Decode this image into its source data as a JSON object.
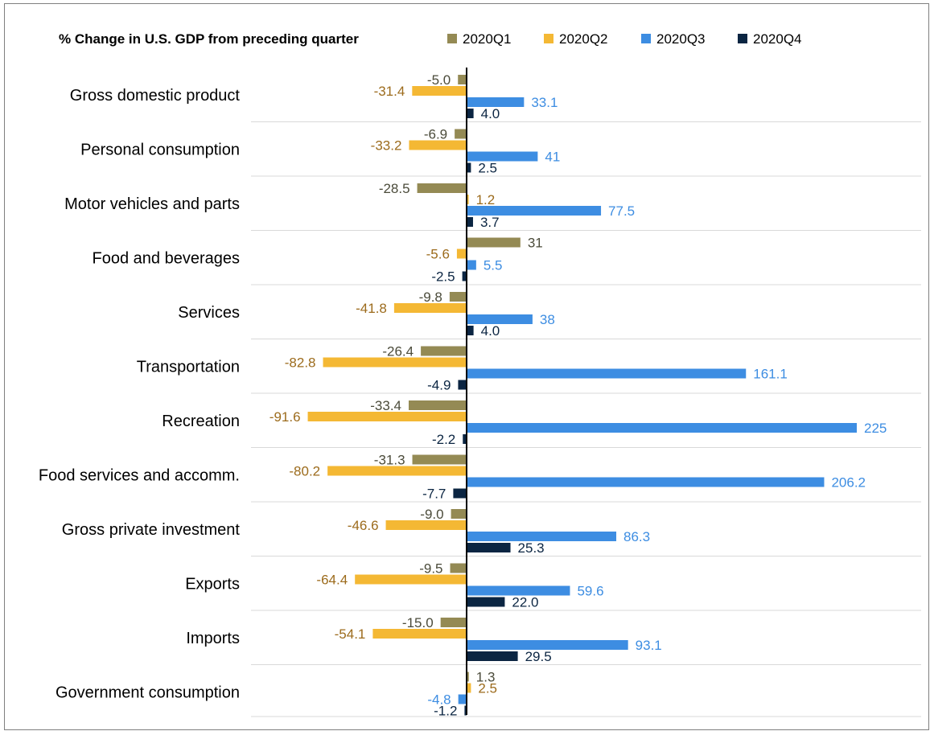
{
  "chart_data": {
    "type": "bar",
    "orientation": "horizontal",
    "title": "% Change in U.S. GDP from preceding quarter",
    "categories": [
      "Gross domestic product",
      "Personal consumption",
      "Motor vehicles and parts",
      "Food and beverages",
      "Services",
      "Transportation",
      "Recreation",
      "Food services and accomm.",
      "Gross private investment",
      "Exports",
      "Imports",
      "Government consumption"
    ],
    "series": [
      {
        "name": "2020Q1",
        "color": "#948a54",
        "label_color": "#4b4b3a",
        "values": [
          -5.0,
          -6.9,
          -28.5,
          31,
          -9.8,
          -26.4,
          -33.4,
          -31.3,
          -9.0,
          -9.5,
          -15.0,
          1.3
        ],
        "labels": [
          "-5.0",
          "-6.9",
          "-28.5",
          "31",
          "-9.8",
          "-26.4",
          "-33.4",
          "-31.3",
          "-9.0",
          "-9.5",
          "-15.0",
          "1.3"
        ]
      },
      {
        "name": "2020Q2",
        "color": "#f4b834",
        "label_color": "#9c6b1c",
        "values": [
          -31.4,
          -33.2,
          1.2,
          -5.6,
          -41.8,
          -82.8,
          -91.6,
          -80.2,
          -46.6,
          -64.4,
          -54.1,
          2.5
        ],
        "labels": [
          "-31.4",
          "-33.2",
          "1.2",
          "-5.6",
          "-41.8",
          "-82.8",
          "-91.6",
          "-80.2",
          "-46.6",
          "-64.4",
          "-54.1",
          "2.5"
        ]
      },
      {
        "name": "2020Q3",
        "color": "#3d8de2",
        "label_color": "#3d8de2",
        "values": [
          33.1,
          41,
          77.5,
          5.5,
          38,
          161.1,
          225,
          206.2,
          86.3,
          59.6,
          93.1,
          -4.8
        ],
        "labels": [
          "33.1",
          "41",
          "77.5",
          "5.5",
          "38",
          "161.1",
          "225",
          "206.2",
          "86.3",
          "59.6",
          "93.1",
          "-4.8"
        ]
      },
      {
        "name": "2020Q4",
        "color": "#0b2542",
        "label_color": "#0b2542",
        "values": [
          4.0,
          2.5,
          3.7,
          -2.5,
          4.0,
          -4.9,
          -2.2,
          -7.7,
          25.3,
          22.0,
          29.5,
          -1.2
        ],
        "labels": [
          "4.0",
          "2.5",
          "3.7",
          "-2.5",
          "4.0",
          "-4.9",
          "-2.2",
          "-7.7",
          "25.3",
          "22.0",
          "29.5",
          "-1.2"
        ]
      }
    ],
    "legend_position": "top",
    "grid": "horizontal separators between categories"
  }
}
